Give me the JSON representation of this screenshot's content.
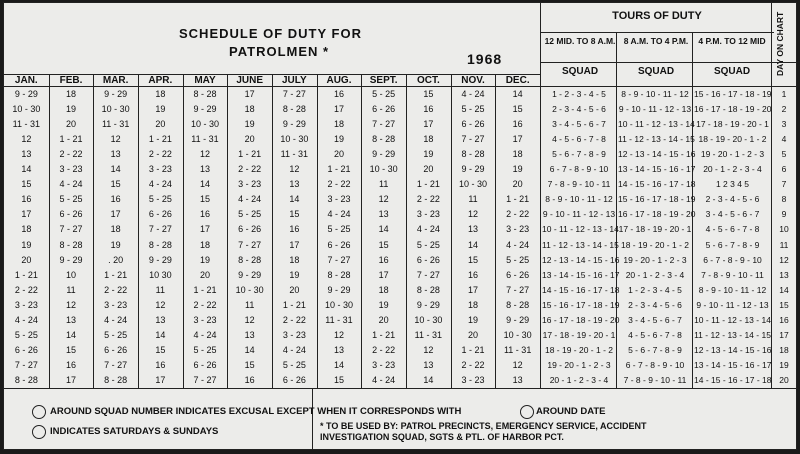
{
  "title_line1": "SCHEDULE OF DUTY FOR",
  "title_line2": "PATROLMEN *",
  "year": "1968",
  "tours_title": "TOURS OF DUTY",
  "day_on_chart": "DAY ON CHART",
  "tour_headers": [
    "12 MID. TO 8 A.M.",
    "8 A.M. TO 4 P.M.",
    "4 P.M. TO 12 MID"
  ],
  "squad_label": "SQUAD",
  "months": [
    "JAN.",
    "FEB.",
    "MAR.",
    "APR.",
    "MAY",
    "JUNE",
    "JULY",
    "AUG.",
    "SEPT.",
    "OCT.",
    "NOV.",
    "DEC."
  ],
  "rows": [
    [
      "9 - 29",
      "18",
      "9 - 29",
      "18",
      "8 - 28",
      "17",
      "7 - 27",
      "16",
      "5 - 25",
      "15",
      "4 - 24",
      "14"
    ],
    [
      "10 - 30",
      "19",
      "10 - 30",
      "19",
      "9 - 29",
      "18",
      "8 - 28",
      "17",
      "6 - 26",
      "16",
      "5 - 25",
      "15"
    ],
    [
      "11 - 31",
      "20",
      "11 - 31",
      "20",
      "10 - 30",
      "19",
      "9 - 29",
      "18",
      "7 - 27",
      "17",
      "6 - 26",
      "16"
    ],
    [
      "12",
      "1 - 21",
      "12",
      "1 - 21",
      "11 - 31",
      "20",
      "10 - 30",
      "19",
      "8 - 28",
      "18",
      "7 - 27",
      "17"
    ],
    [
      "13",
      "2 - 22",
      "13",
      "2 - 22",
      "12",
      "1 - 21",
      "11 - 31",
      "20",
      "9 - 29",
      "19",
      "8 - 28",
      "18"
    ],
    [
      "14",
      "3 - 23",
      "14",
      "3 - 23",
      "13",
      "2 - 22",
      "12",
      "1 - 21",
      "10 - 30",
      "20",
      "9 - 29",
      "19"
    ],
    [
      "15",
      "4 - 24",
      "15",
      "4 - 24",
      "14",
      "3 - 23",
      "13",
      "2 - 22",
      "11",
      "1 - 21",
      "10 - 30",
      "20"
    ],
    [
      "16",
      "5 - 25",
      "16",
      "5 - 25",
      "15",
      "4 - 24",
      "14",
      "3 - 23",
      "12",
      "2 - 22",
      "11",
      "1 - 21"
    ],
    [
      "17",
      "6 - 26",
      "17",
      "6 - 26",
      "16",
      "5 - 25",
      "15",
      "4 - 24",
      "13",
      "3 - 23",
      "12",
      "2 - 22"
    ],
    [
      "18",
      "7 - 27",
      "18",
      "7 - 27",
      "17",
      "6 - 26",
      "16",
      "5 - 25",
      "14",
      "4 - 24",
      "13",
      "3 - 23"
    ],
    [
      "19",
      "8 - 28",
      "19",
      "8 - 28",
      "18",
      "7 - 27",
      "17",
      "6 - 26",
      "15",
      "5 - 25",
      "14",
      "4 - 24"
    ],
    [
      "20",
      "9 - 29",
      ". 20",
      "9 - 29",
      "19",
      "8 - 28",
      "18",
      "7 - 27",
      "16",
      "6 - 26",
      "15",
      "5 - 25"
    ],
    [
      "1 - 21",
      "10",
      "1 - 21",
      "10 30",
      "20",
      "9 - 29",
      "19",
      "8 - 28",
      "17",
      "7 - 27",
      "16",
      "6 - 26"
    ],
    [
      "2 - 22",
      "11",
      "2 - 22",
      "11",
      "1 - 21",
      "10 - 30",
      "20",
      "9 - 29",
      "18",
      "8 - 28",
      "17",
      "7 - 27"
    ],
    [
      "3 - 23",
      "12",
      "3 - 23",
      "12",
      "2 - 22",
      "11",
      "1 - 21",
      "10 - 30",
      "19",
      "9 - 29",
      "18",
      "8 - 28"
    ],
    [
      "4 - 24",
      "13",
      "4 - 24",
      "13",
      "3 - 23",
      "12",
      "2 - 22",
      "11 - 31",
      "20",
      "10 - 30",
      "19",
      "9 - 29"
    ],
    [
      "5 - 25",
      "14",
      "5 - 25",
      "14",
      "4 - 24",
      "13",
      "3 - 23",
      "12",
      "1 - 21",
      "11 - 31",
      "20",
      "10 - 30"
    ],
    [
      "6 - 26",
      "15",
      "6 - 26",
      "15",
      "5 - 25",
      "14",
      "4 - 24",
      "13",
      "2 - 22",
      "12",
      "1 - 21",
      "11 - 31"
    ],
    [
      "7 - 27",
      "16",
      "7 - 27",
      "16",
      "6 - 26",
      "15",
      "5 - 25",
      "14",
      "3 - 23",
      "13",
      "2 - 22",
      "12"
    ],
    [
      "8 - 28",
      "17",
      "8 - 28",
      "17",
      "7 - 27",
      "16",
      "6 - 26",
      "15",
      "4 - 24",
      "14",
      "3 - 23",
      "13"
    ]
  ],
  "squad_rows": [
    [
      "1 - 2 - 3 - 4 - 5",
      "8 - 9 - 10 - 11 - 12",
      "15 - 16 - 17 - 18 - 19",
      "1"
    ],
    [
      "2 - 3 - 4 - 5 - 6",
      "9 - 10 - 11 - 12 - 13",
      "16 - 17 - 18 - 19 - 20",
      "2"
    ],
    [
      "3 - 4 - 5 - 6 - 7",
      "10 - 11 - 12 - 13 - 14",
      "17 - 18 - 19 - 20 - 1",
      "3"
    ],
    [
      "4 - 5 - 6 - 7 - 8",
      "11 - 12 - 13 - 14 - 15",
      "18 - 19 - 20 - 1 - 2",
      "4"
    ],
    [
      "5 - 6 - 7 - 8 - 9",
      "12 - 13 - 14 - 15 - 16",
      "19 - 20 - 1 - 2 - 3",
      "5"
    ],
    [
      "6 - 7 - 8 - 9 - 10",
      "13 - 14 - 15 - 16 - 17",
      "20 - 1 - 2 - 3 - 4",
      "6"
    ],
    [
      "7 - 8 - 9 - 10 - 11",
      "14 - 15 - 16 - 17 - 18",
      "1  2  3  4  5",
      "7"
    ],
    [
      "8 - 9 - 10 - 11 - 12",
      "15 - 16 - 17 - 18 - 19",
      "2 - 3 - 4 - 5 - 6",
      "8"
    ],
    [
      "9 - 10 - 11 - 12 - 13",
      "16 - 17 - 18 - 19 - 20",
      "3 - 4 - 5 - 6 - 7",
      "9"
    ],
    [
      "10 - 11 - 12 - 13 - 14",
      "17 - 18 - 19 - 20 - 1",
      "4 - 5 - 6 - 7 - 8",
      "10"
    ],
    [
      "11 - 12 - 13 - 14 - 15",
      "18 - 19 - 20 - 1 - 2",
      "5 - 6 - 7 - 8 - 9",
      "11"
    ],
    [
      "12 - 13 - 14 - 15 - 16",
      "19 - 20 - 1 - 2 - 3",
      "6 - 7 - 8 - 9 - 10",
      "12"
    ],
    [
      "13 - 14 - 15 - 16 - 17",
      "20 - 1 - 2 - 3 - 4",
      "7 - 8 - 9 - 10 - 11",
      "13"
    ],
    [
      "14 - 15 - 16 - 17 - 18",
      "1 - 2 - 3 - 4 - 5",
      "8 - 9 - 10 - 11 - 12",
      "14"
    ],
    [
      "15 - 16 - 17 - 18 - 19",
      "2 - 3 - 4 - 5 - 6",
      "9 - 10 - 11 - 12 - 13",
      "15"
    ],
    [
      "16 - 17 - 18 - 19 - 20",
      "3 - 4 - 5 - 6 - 7",
      "10 - 11 - 12 - 13 - 14",
      "16"
    ],
    [
      "17 - 18 - 19 - 20 - 1",
      "4 - 5 - 6 - 7 - 8",
      "11 - 12 - 13 - 14 - 15",
      "17"
    ],
    [
      "18 - 19 - 20 - 1 - 2",
      "5 - 6 - 7 - 8 - 9",
      "12 - 13 - 14 - 15 - 16",
      "18"
    ],
    [
      "19 - 20 - 1 - 2 - 3",
      "6 - 7 - 8 - 9 - 10",
      "13 - 14 - 15 - 16 - 17",
      "19"
    ],
    [
      "20 - 1 - 2 - 3 - 4",
      "7 - 8 - 9 - 10 - 11",
      "14 - 15 - 16 - 17 - 18",
      "20"
    ]
  ],
  "legend1": "AROUND SQUAD NUMBER INDICATES EXCUSAL EXCEPT WHEN IT CORRESPONDS WITH",
  "legend1b": "AROUND DATE",
  "legend2": "INDICATES SATURDAYS & SUNDAYS",
  "footnote": "* TO BE USED BY: PATROL PRECINCTS, EMERGENCY SERVICE, ACCIDENT INVESTIGATION SQUAD, SGTS & PTL. OF HARBOR PCT."
}
